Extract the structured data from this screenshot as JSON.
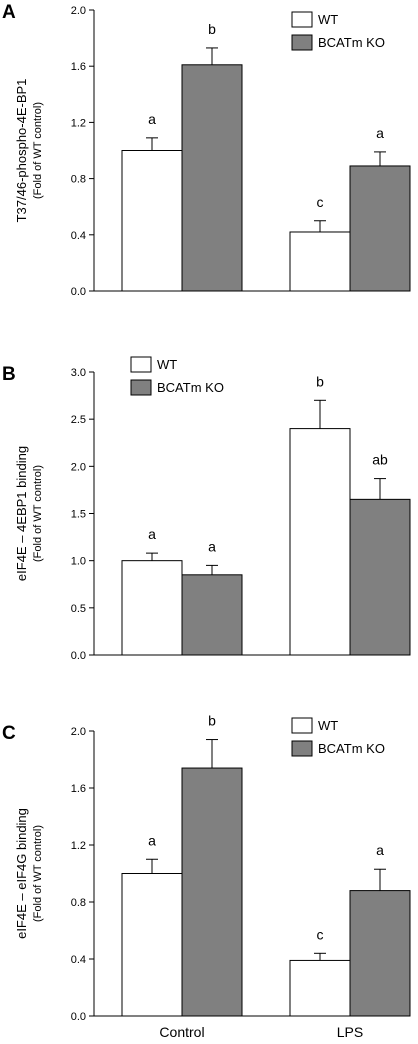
{
  "colors": {
    "wt": "#ffffff",
    "ko": "#808080",
    "stroke": "#000000"
  },
  "categories": [
    "Control",
    "LPS"
  ],
  "legend_labels": [
    "WT",
    "BCATm KO"
  ],
  "chart_data": [
    {
      "type": "bar",
      "panel": "A",
      "ylabel": "T37/46-phospho-4E-BP1",
      "ylabel_sub": "(Fold of WT control)",
      "ylim": [
        0,
        2.0
      ],
      "yticks": [
        "0.0",
        "0.4",
        "0.8",
        "1.2",
        "1.6",
        "2.0"
      ],
      "legend": "top-right",
      "categories": [
        "Control",
        "LPS"
      ],
      "series": [
        {
          "name": "WT",
          "values": [
            1.0,
            0.42
          ],
          "errors": [
            0.09,
            0.08
          ],
          "labels": [
            "a",
            "c"
          ]
        },
        {
          "name": "BCATm KO",
          "values": [
            1.61,
            0.89
          ],
          "errors": [
            0.12,
            0.1
          ],
          "labels": [
            "b",
            "a"
          ]
        }
      ]
    },
    {
      "type": "bar",
      "panel": "B",
      "ylabel": "eIF4E – 4EBP1 binding",
      "ylabel_sub": "(Fold of WT control)",
      "ylim": [
        0,
        3.0
      ],
      "yticks": [
        "0.0",
        "0.5",
        "1.0",
        "1.5",
        "2.0",
        "2.5",
        "3.0"
      ],
      "legend": "top-left",
      "categories": [
        "Control",
        "LPS"
      ],
      "series": [
        {
          "name": "WT",
          "values": [
            1.0,
            2.4
          ],
          "errors": [
            0.08,
            0.3
          ],
          "labels": [
            "a",
            "b"
          ]
        },
        {
          "name": "BCATm KO",
          "values": [
            0.85,
            1.65
          ],
          "errors": [
            0.1,
            0.22
          ],
          "labels": [
            "a",
            "ab"
          ]
        }
      ]
    },
    {
      "type": "bar",
      "panel": "C",
      "ylabel": "eIF4E – eIF4G binding",
      "ylabel_sub": "(Fold of WT control)",
      "ylim": [
        0,
        2.0
      ],
      "yticks": [
        "0.0",
        "0.4",
        "0.8",
        "1.2",
        "1.6",
        "2.0"
      ],
      "legend": "top-right",
      "categories": [
        "Control",
        "LPS"
      ],
      "series": [
        {
          "name": "WT",
          "values": [
            1.0,
            0.39
          ],
          "errors": [
            0.1,
            0.05
          ],
          "labels": [
            "a",
            "c"
          ]
        },
        {
          "name": "BCATm KO",
          "values": [
            1.74,
            0.88
          ],
          "errors": [
            0.2,
            0.15
          ],
          "labels": [
            "b",
            "a"
          ]
        }
      ]
    }
  ]
}
